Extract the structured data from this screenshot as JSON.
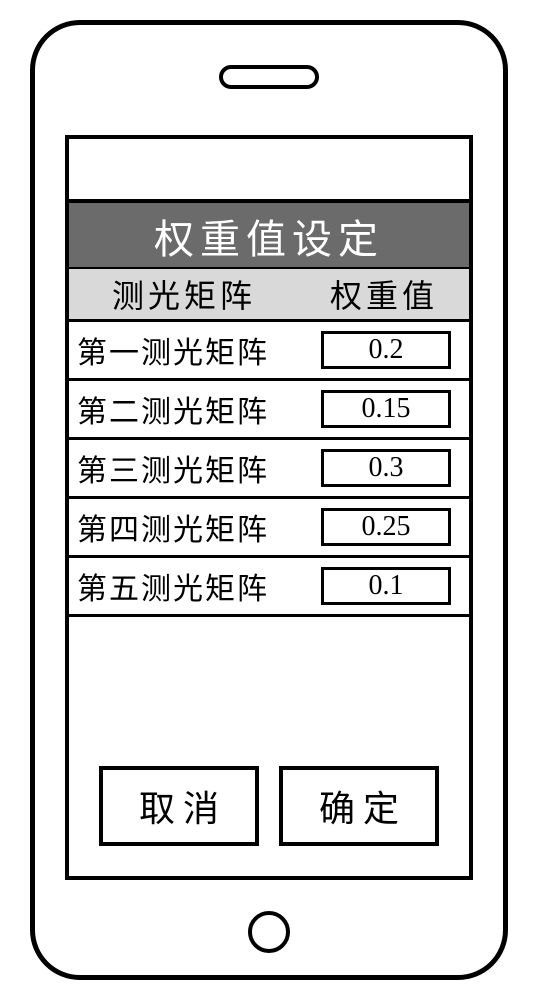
{
  "title": "权重值设定",
  "columns": {
    "left": "测光矩阵",
    "right": "权重值"
  },
  "rows": [
    {
      "label": "第一测光矩阵",
      "value": "0.2"
    },
    {
      "label": "第二测光矩阵",
      "value": "0.15"
    },
    {
      "label": "第三测光矩阵",
      "value": "0.3"
    },
    {
      "label": "第四测光矩阵",
      "value": "0.25"
    },
    {
      "label": "第五测光矩阵",
      "value": "0.1"
    }
  ],
  "buttons": {
    "cancel": "取消",
    "confirm": "确定"
  },
  "colors": {
    "title_bg": "#6b6b6b",
    "title_fg": "#ffffff",
    "header_bg": "#d9d9d9",
    "border": "#000000",
    "page_bg": "#ffffff"
  }
}
